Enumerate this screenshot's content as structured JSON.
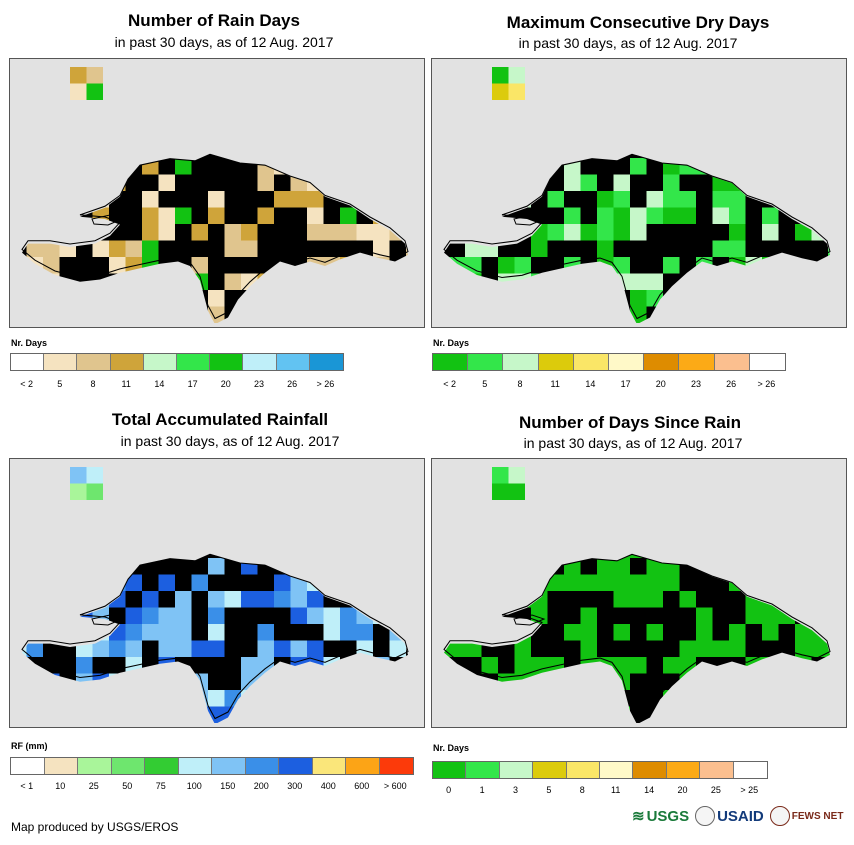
{
  "panels": [
    {
      "id": "rain-days",
      "title": "Number of Rain Days",
      "subtitle": "in past 30 days, as of 12 Aug. 2017",
      "legend_title": "Nr. Days",
      "legend_colors": [
        "#ffffff",
        "#f5e3c0",
        "#e0c58e",
        "#cfa43a",
        "#c6f7c9",
        "#33e64a",
        "#12c212",
        "#bfeff9",
        "#62c3f2",
        "#1a96d6"
      ],
      "legend_labels": [
        "< 2",
        "5",
        "8",
        "11",
        "14",
        "17",
        "20",
        "23",
        "26",
        "> 26"
      ],
      "fill_colors": [
        "#cfa43a",
        "#e0c58e",
        "#f5e3c0",
        "#12c212",
        "#33e64a",
        "#c6f7c9",
        "#bfeff9"
      ]
    },
    {
      "id": "dry-days",
      "title": "Maximum Consecutive Dry Days",
      "subtitle": "in past 30 days, as of 12 Aug. 2017",
      "legend_title": "Nr. Days",
      "legend_colors": [
        "#12c212",
        "#33e64a",
        "#c6f7c9",
        "#dccb0c",
        "#fae667",
        "#fff9c8",
        "#de8c00",
        "#fcaa16",
        "#fbbf8f",
        "#ffffff"
      ],
      "legend_labels": [
        "< 2",
        "5",
        "8",
        "11",
        "14",
        "17",
        "20",
        "23",
        "26",
        "> 26"
      ],
      "fill_colors": [
        "#33e64a",
        "#12c212",
        "#c6f7c9",
        "#dccb0c",
        "#fae667",
        "#fcaa16"
      ]
    },
    {
      "id": "rainfall",
      "title": "Total Accumulated Rainfall",
      "subtitle": "in past 30 days, as of 12 Aug. 2017",
      "legend_title": "RF (mm)",
      "legend_colors": [
        "#ffffff",
        "#f5e3c0",
        "#a9f59a",
        "#6ee66e",
        "#33cc33",
        "#bfeff9",
        "#7fc3f5",
        "#3a8fe8",
        "#1c5fe0",
        "#fae67a",
        "#fca416",
        "#fc3a0a"
      ],
      "legend_labels": [
        "< 1",
        "10",
        "25",
        "50",
        "75",
        "100",
        "150",
        "200",
        "300",
        "400",
        "600",
        "> 600"
      ],
      "fill_colors": [
        "#1c5fe0",
        "#3a8fe8",
        "#7fc3f5",
        "#bfeff9",
        "#a9f59a",
        "#6ee66e",
        "#fae67a"
      ]
    },
    {
      "id": "days-since-rain",
      "title": "Number of Days Since Rain",
      "subtitle": "in past 30 days, as of 12 Aug. 2017",
      "legend_title": "Nr. Days",
      "legend_colors": [
        "#12c212",
        "#33e64a",
        "#c6f7c9",
        "#dccb0c",
        "#fae667",
        "#fff9c8",
        "#de8c00",
        "#fcaa16",
        "#fbbf8f",
        "#ffffff"
      ],
      "legend_labels": [
        "0",
        "1",
        "3",
        "5",
        "8",
        "11",
        "14",
        "20",
        "25",
        "> 25"
      ],
      "fill_colors": [
        "#12c212",
        "#12c212",
        "#12c212",
        "#33e64a",
        "#c6f7c9"
      ]
    }
  ],
  "credit": "Map produced by USGS/EROS",
  "logos": {
    "usgs": "USGS",
    "usaid": "USAID",
    "fews": "FEWS NET"
  }
}
